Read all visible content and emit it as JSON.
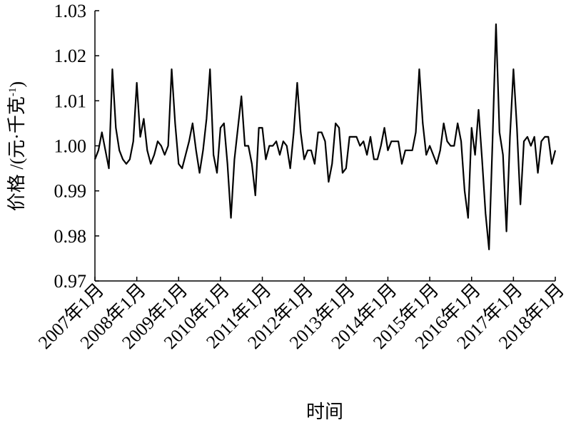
{
  "chart_data": {
    "type": "line",
    "xlabel": "时间",
    "ylabel": {
      "main": "价格 /(元·千克",
      "sup": "-1",
      "close": ")"
    },
    "categories": [
      "2007年1月",
      null,
      null,
      null,
      null,
      null,
      null,
      null,
      null,
      null,
      null,
      null,
      "2008年1月",
      null,
      null,
      null,
      null,
      null,
      null,
      null,
      null,
      null,
      null,
      null,
      "2009年1月",
      null,
      null,
      null,
      null,
      null,
      null,
      null,
      null,
      null,
      null,
      null,
      "2010年1月",
      null,
      null,
      null,
      null,
      null,
      null,
      null,
      null,
      null,
      null,
      null,
      "2011年1月",
      null,
      null,
      null,
      null,
      null,
      null,
      null,
      null,
      null,
      null,
      null,
      "2012年1月",
      null,
      null,
      null,
      null,
      null,
      null,
      null,
      null,
      null,
      null,
      null,
      "2013年1月",
      null,
      null,
      null,
      null,
      null,
      null,
      null,
      null,
      null,
      null,
      null,
      "2014年1月",
      null,
      null,
      null,
      null,
      null,
      null,
      null,
      null,
      null,
      null,
      null,
      "2015年1月",
      null,
      null,
      null,
      null,
      null,
      null,
      null,
      null,
      null,
      null,
      null,
      "2016年1月",
      null,
      null,
      null,
      null,
      null,
      null,
      null,
      null,
      null,
      null,
      null,
      "2017年1月",
      null,
      null,
      null,
      null,
      null,
      null,
      null,
      null,
      null,
      null,
      null,
      "2018年1月"
    ],
    "values": [
      0.997,
      0.999,
      1.003,
      0.999,
      0.995,
      1.017,
      1.004,
      0.999,
      0.997,
      0.996,
      0.997,
      1.001,
      1.014,
      1.002,
      1.006,
      0.999,
      0.996,
      0.998,
      1.001,
      1.0,
      0.998,
      1.0,
      1.017,
      1.005,
      0.996,
      0.995,
      0.998,
      1.001,
      1.005,
      0.999,
      0.994,
      0.999,
      1.006,
      1.017,
      0.998,
      0.994,
      1.004,
      1.005,
      0.996,
      0.984,
      0.997,
      1.004,
      1.011,
      1.0,
      1.0,
      0.996,
      0.989,
      1.004,
      1.004,
      0.997,
      1.0,
      1.0,
      1.001,
      0.998,
      1.001,
      1.0,
      0.995,
      1.003,
      1.014,
      1.003,
      0.997,
      0.999,
      0.999,
      0.996,
      1.003,
      1.003,
      1.001,
      0.992,
      0.996,
      1.005,
      1.004,
      0.994,
      0.995,
      1.002,
      1.002,
      1.002,
      1.0,
      1.001,
      0.998,
      1.002,
      0.997,
      0.997,
      1.0,
      1.004,
      0.999,
      1.001,
      1.001,
      1.001,
      0.996,
      0.999,
      0.999,
      0.999,
      1.003,
      1.017,
      1.005,
      0.998,
      1.0,
      0.998,
      0.996,
      0.999,
      1.005,
      1.001,
      1.0,
      1.0,
      1.005,
      1.001,
      0.99,
      0.984,
      1.004,
      0.998,
      1.008,
      0.997,
      0.985,
      0.977,
      1.001,
      1.027,
      1.003,
      0.998,
      0.981,
      1.002,
      1.017,
      1.004,
      0.987,
      1.001,
      1.002,
      1.0,
      1.002,
      0.994,
      1.001,
      1.002,
      1.002,
      0.996,
      0.999
    ],
    "color": "#000000",
    "ylim": [
      0.97,
      1.03
    ],
    "yticks": [
      0.97,
      0.98,
      0.99,
      {
        "value": 1,
        "label": "1.00"
      },
      1.01,
      1.02,
      1.03
    ]
  }
}
